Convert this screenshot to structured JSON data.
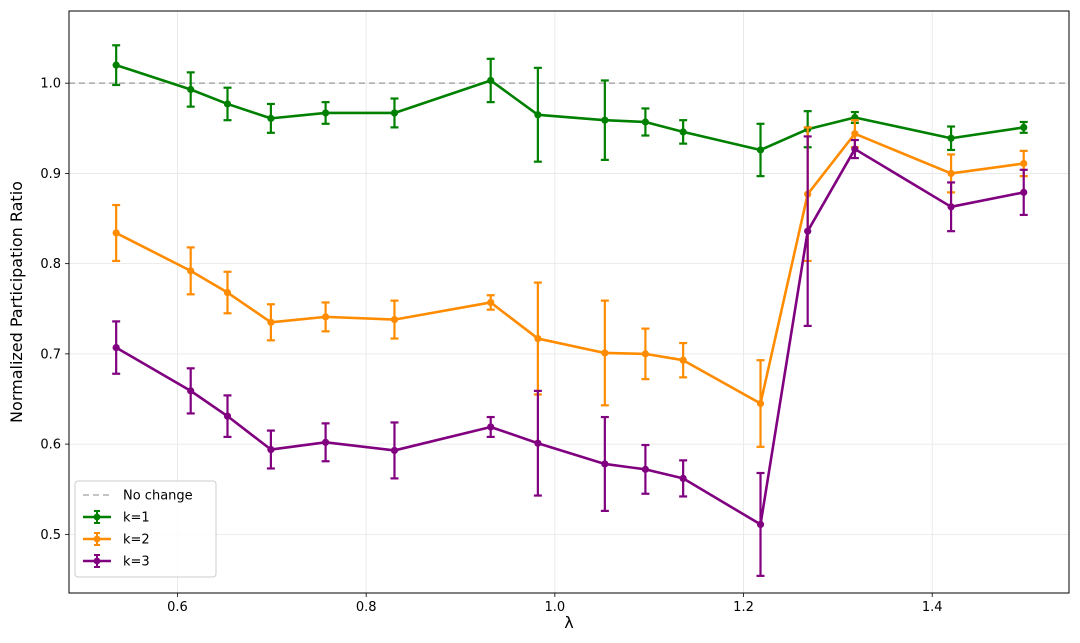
{
  "chart_data": {
    "type": "line",
    "title": "",
    "xlabel": "λ",
    "ylabel": "Normalized Participation Ratio",
    "xlim": [
      0.485,
      1.545
    ],
    "ylim": [
      0.435,
      1.08
    ],
    "xticks": [
      0.6,
      0.8,
      1.0,
      1.2,
      1.4
    ],
    "xtick_labels": [
      "0.6",
      "0.8",
      "1.0",
      "1.2",
      "1.4"
    ],
    "yticks": [
      0.5,
      0.6,
      0.7,
      0.8,
      0.9,
      1.0
    ],
    "ytick_labels": [
      "0.5",
      "0.6",
      "0.7",
      "0.8",
      "0.9",
      "1.0"
    ],
    "grid": true,
    "legend_position": "lower-left",
    "reference_line": {
      "name": "No change",
      "y": 1.0,
      "color": "#b0b0b0",
      "style": "dashed"
    },
    "series": [
      {
        "name": "k=1",
        "color": "#008000",
        "x": [
          0.535,
          0.614,
          0.653,
          0.699,
          0.757,
          0.83,
          0.932,
          0.982,
          1.053,
          1.096,
          1.136,
          1.218,
          1.268,
          1.318,
          1.42,
          1.497
        ],
        "y": [
          1.02,
          0.993,
          0.977,
          0.961,
          0.967,
          0.967,
          1.003,
          0.965,
          0.959,
          0.957,
          0.946,
          0.926,
          0.949,
          0.962,
          0.939,
          0.951
        ],
        "err": [
          0.022,
          0.019,
          0.018,
          0.016,
          0.012,
          0.016,
          0.024,
          0.052,
          0.044,
          0.015,
          0.013,
          0.029,
          0.02,
          0.006,
          0.013,
          0.006
        ]
      },
      {
        "name": "k=2",
        "color": "#ff8c00",
        "x": [
          0.535,
          0.614,
          0.653,
          0.699,
          0.757,
          0.83,
          0.932,
          0.982,
          1.053,
          1.096,
          1.136,
          1.218,
          1.268,
          1.318,
          1.42,
          1.497
        ],
        "y": [
          0.834,
          0.792,
          0.768,
          0.735,
          0.741,
          0.738,
          0.757,
          0.717,
          0.701,
          0.7,
          0.693,
          0.645,
          0.877,
          0.944,
          0.9,
          0.911
        ],
        "err": [
          0.031,
          0.026,
          0.023,
          0.02,
          0.016,
          0.021,
          0.008,
          0.062,
          0.058,
          0.028,
          0.019,
          0.048,
          0.074,
          0.015,
          0.021,
          0.014
        ]
      },
      {
        "name": "k=3",
        "color": "#800080",
        "x": [
          0.535,
          0.614,
          0.653,
          0.699,
          0.757,
          0.83,
          0.932,
          0.982,
          1.053,
          1.096,
          1.136,
          1.218,
          1.268,
          1.318,
          1.42,
          1.497
        ],
        "y": [
          0.707,
          0.659,
          0.631,
          0.594,
          0.602,
          0.593,
          0.619,
          0.601,
          0.578,
          0.572,
          0.562,
          0.511,
          0.836,
          0.927,
          0.863,
          0.879
        ],
        "err": [
          0.029,
          0.025,
          0.023,
          0.021,
          0.021,
          0.031,
          0.011,
          0.058,
          0.052,
          0.027,
          0.02,
          0.057,
          0.105,
          0.01,
          0.027,
          0.025
        ]
      }
    ]
  }
}
